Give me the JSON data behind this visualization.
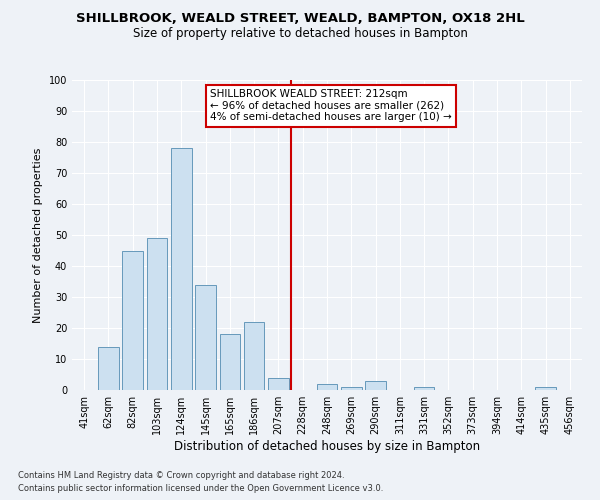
{
  "title": "SHILLBROOK, WEALD STREET, WEALD, BAMPTON, OX18 2HL",
  "subtitle": "Size of property relative to detached houses in Bampton",
  "xlabel": "Distribution of detached houses by size in Bampton",
  "ylabel": "Number of detached properties",
  "categories": [
    "41sqm",
    "62sqm",
    "82sqm",
    "103sqm",
    "124sqm",
    "145sqm",
    "165sqm",
    "186sqm",
    "207sqm",
    "228sqm",
    "248sqm",
    "269sqm",
    "290sqm",
    "311sqm",
    "331sqm",
    "352sqm",
    "373sqm",
    "394sqm",
    "414sqm",
    "435sqm",
    "456sqm"
  ],
  "values": [
    0,
    14,
    45,
    49,
    78,
    34,
    18,
    22,
    4,
    0,
    2,
    1,
    3,
    0,
    1,
    0,
    0,
    0,
    0,
    1,
    0
  ],
  "bar_color": "#cce0f0",
  "bar_edge_color": "#6699bb",
  "vline_x": 8.5,
  "vline_color": "#cc0000",
  "annotation_title": "SHILLBROOK WEALD STREET: 212sqm",
  "annotation_line1": "← 96% of detached houses are smaller (262)",
  "annotation_line2": "4% of semi-detached houses are larger (10) →",
  "annotation_box_color": "#ffffff",
  "annotation_box_edge": "#cc0000",
  "ylim": [
    0,
    100
  ],
  "yticks": [
    0,
    10,
    20,
    30,
    40,
    50,
    60,
    70,
    80,
    90,
    100
  ],
  "background_color": "#eef2f7",
  "grid_color": "#ffffff",
  "footer1": "Contains HM Land Registry data © Crown copyright and database right 2024.",
  "footer2": "Contains public sector information licensed under the Open Government Licence v3.0.",
  "title_fontsize": 9.5,
  "subtitle_fontsize": 8.5,
  "tick_fontsize": 7,
  "ylabel_fontsize": 8,
  "xlabel_fontsize": 8.5,
  "ann_fontsize": 7.5,
  "footer_fontsize": 6
}
